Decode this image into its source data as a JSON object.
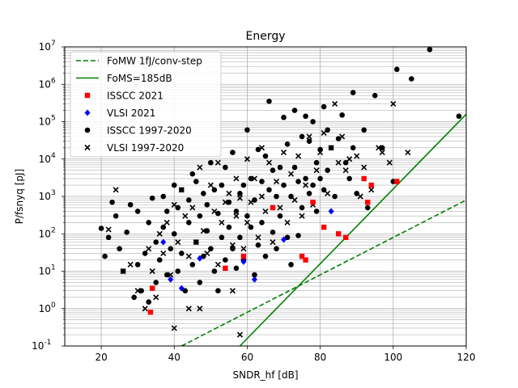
{
  "chart_data": {
    "type": "scatter",
    "title": "Energy",
    "xlabel": "SNDR_hf [dB]",
    "ylabel": "P/fsnyq [pJ]",
    "xlim": [
      10,
      120
    ],
    "ylim_log10": [
      -1,
      7
    ],
    "xscale": "linear",
    "yscale": "log",
    "grid": "on (major and minor)",
    "legend_location": "upper-left",
    "xticks": [
      "20",
      "40",
      "60",
      "80",
      "100",
      "120"
    ],
    "yticks": [
      "10^{-1}",
      "10^{0}",
      "10^{1}",
      "10^{2}",
      "10^{3}",
      "10^{4}",
      "10^{5}",
      "10^{6}",
      "10^{7}"
    ],
    "colors": {
      "fom_lines": "#008000",
      "isscc2021": "#ff0000",
      "vlsi2021": "#0000ff",
      "historic": "#000000"
    },
    "legend": [
      {
        "label": "FoMW 1fJ/conv-step",
        "marker": "dashed-line",
        "color": "#008000"
      },
      {
        "label": "FoMS=185dB",
        "marker": "solid-line",
        "color": "#008000"
      },
      {
        "label": "ISSCC 2021",
        "marker": "square",
        "color": "#ff0000"
      },
      {
        "label": "VLSI 2021",
        "marker": "diamond",
        "color": "#0000ff"
      },
      {
        "label": "ISSCC 1997-2020",
        "marker": "circle",
        "color": "#000000"
      },
      {
        "label": "VLSI 1997-2020",
        "marker": "x",
        "color": "#000000"
      }
    ],
    "reference_lines": [
      {
        "name": "FoMW 1fJ/conv-step",
        "style": "dashed",
        "points": [
          [
            42,
            0.1
          ],
          [
            120,
            800
          ]
        ]
      },
      {
        "name": "FoMS=185dB",
        "style": "solid",
        "points": [
          [
            58,
            0.1
          ],
          [
            120,
            158000
          ]
        ]
      }
    ],
    "series": [
      {
        "name": "ISSCC 2021",
        "marker": "square",
        "points": [
          [
            33.5,
            0.8
          ],
          [
            34,
            3.5
          ],
          [
            54,
            12
          ],
          [
            59,
            25
          ],
          [
            67,
            500
          ],
          [
            75,
            25
          ],
          [
            76,
            20
          ],
          [
            78,
            700
          ],
          [
            81,
            150
          ],
          [
            85,
            100
          ],
          [
            87,
            80
          ],
          [
            92,
            3000
          ],
          [
            93,
            700
          ],
          [
            94,
            2000
          ],
          [
            101,
            2500
          ]
        ]
      },
      {
        "name": "VLSI 2021",
        "marker": "diamond",
        "points": [
          [
            37,
            60
          ],
          [
            39,
            6
          ],
          [
            42,
            3.5
          ],
          [
            47,
            22
          ],
          [
            59,
            18
          ],
          [
            62,
            6
          ],
          [
            70,
            70
          ],
          [
            83,
            400
          ]
        ]
      },
      {
        "name": "ISSCC 1997-2020",
        "marker": "circle",
        "points": [
          [
            20,
            140
          ],
          [
            21,
            25
          ],
          [
            22,
            80
          ],
          [
            23,
            700
          ],
          [
            24,
            300
          ],
          [
            25,
            40
          ],
          [
            26,
            10
          ],
          [
            27,
            110
          ],
          [
            28,
            600
          ],
          [
            29,
            2
          ],
          [
            30,
            15
          ],
          [
            30,
            400
          ],
          [
            31,
            3
          ],
          [
            32,
            30
          ],
          [
            33,
            1.5
          ],
          [
            33,
            200
          ],
          [
            34,
            900
          ],
          [
            35,
            5
          ],
          [
            35,
            60
          ],
          [
            36,
            20
          ],
          [
            37,
            1000
          ],
          [
            37,
            150
          ],
          [
            38,
            8
          ],
          [
            38,
            400
          ],
          [
            39,
            40
          ],
          [
            40,
            2000
          ],
          [
            40,
            100
          ],
          [
            41,
            10
          ],
          [
            41,
            500
          ],
          [
            42,
            30
          ],
          [
            42,
            1500
          ],
          [
            43,
            3
          ],
          [
            44,
            200
          ],
          [
            44,
            800
          ],
          [
            45,
            15
          ],
          [
            45,
            4000
          ],
          [
            46,
            60
          ],
          [
            46,
            2500
          ],
          [
            47,
            5
          ],
          [
            47,
            300
          ],
          [
            48,
            1200
          ],
          [
            48,
            25
          ],
          [
            49,
            120
          ],
          [
            49,
            600
          ],
          [
            50,
            8000
          ],
          [
            50,
            40
          ],
          [
            51,
            1500
          ],
          [
            51,
            10
          ],
          [
            52,
            350
          ],
          [
            52,
            3
          ],
          [
            53,
            80
          ],
          [
            53,
            2000
          ],
          [
            54,
            20
          ],
          [
            54,
            6000
          ],
          [
            55,
            150
          ],
          [
            55,
            700
          ],
          [
            56,
            15000
          ],
          [
            56,
            40
          ],
          [
            57,
            12
          ],
          [
            57,
            400
          ],
          [
            58,
            1200
          ],
          [
            58,
            80
          ],
          [
            59,
            2000
          ],
          [
            59,
            20
          ],
          [
            60,
            60000
          ],
          [
            60,
            300
          ],
          [
            61,
            150
          ],
          [
            61,
            3000
          ],
          [
            62,
            8
          ],
          [
            62,
            800
          ],
          [
            63,
            18000
          ],
          [
            63,
            50
          ],
          [
            64,
            2500
          ],
          [
            64,
            200
          ],
          [
            65,
            25
          ],
          [
            65,
            12000
          ],
          [
            66,
            350000
          ],
          [
            66,
            1500
          ],
          [
            67,
            110
          ],
          [
            67,
            5000
          ],
          [
            68,
            1000
          ],
          [
            68,
            40
          ],
          [
            69,
            6000
          ],
          [
            69,
            300
          ],
          [
            70,
            130000
          ],
          [
            70,
            2000
          ],
          [
            71,
            80
          ],
          [
            71,
            25000
          ],
          [
            72,
            1000
          ],
          [
            72,
            15
          ],
          [
            73,
            200000
          ],
          [
            73,
            6000
          ],
          [
            74,
            2500
          ],
          [
            74,
            90
          ],
          [
            75,
            40000
          ],
          [
            75,
            500
          ],
          [
            76,
            140000
          ],
          [
            76,
            3000
          ],
          [
            77,
            1200
          ],
          [
            77,
            30000
          ],
          [
            78,
            100000
          ],
          [
            78,
            2000
          ],
          [
            79,
            8000
          ],
          [
            79,
            400
          ],
          [
            80,
            3000
          ],
          [
            80,
            18000
          ],
          [
            81,
            250000
          ],
          [
            81,
            1500
          ],
          [
            82,
            60000
          ],
          [
            82,
            5000
          ],
          [
            83,
            20000
          ],
          [
            84,
            1000
          ],
          [
            85,
            35000
          ],
          [
            86,
            150000
          ],
          [
            87,
            8000
          ],
          [
            88,
            3000
          ],
          [
            89,
            600000
          ],
          [
            89,
            20000
          ],
          [
            90,
            1200
          ],
          [
            92,
            60000
          ],
          [
            93,
            500
          ],
          [
            95,
            500000
          ],
          [
            97,
            20000
          ],
          [
            100,
            2500
          ],
          [
            101,
            2500000
          ],
          [
            105,
            1400000
          ],
          [
            110,
            8500000
          ],
          [
            118,
            140000
          ]
        ]
      },
      {
        "name": "VLSI 1997-2020",
        "marker": "x",
        "points": [
          [
            22,
            130
          ],
          [
            24,
            1500
          ],
          [
            26,
            10
          ],
          [
            28,
            15
          ],
          [
            30,
            3
          ],
          [
            32,
            1
          ],
          [
            33,
            40
          ],
          [
            34,
            10
          ],
          [
            35,
            2
          ],
          [
            36,
            100
          ],
          [
            37,
            30
          ],
          [
            38,
            200
          ],
          [
            39,
            8
          ],
          [
            40,
            0.3
          ],
          [
            40,
            600
          ],
          [
            41,
            60
          ],
          [
            42,
            1500
          ],
          [
            43,
            300
          ],
          [
            44,
            1
          ],
          [
            44,
            25
          ],
          [
            45,
            500
          ],
          [
            46,
            60
          ],
          [
            47,
            1
          ],
          [
            47,
            6000
          ],
          [
            48,
            120
          ],
          [
            49,
            30
          ],
          [
            50,
            2000
          ],
          [
            51,
            400
          ],
          [
            52,
            15
          ],
          [
            52,
            8000
          ],
          [
            53,
            200
          ],
          [
            54,
            700
          ],
          [
            55,
            1200
          ],
          [
            56,
            3
          ],
          [
            56,
            50
          ],
          [
            57,
            3000
          ],
          [
            57,
            300
          ],
          [
            58,
            0.2
          ],
          [
            58,
            900
          ],
          [
            59,
            40
          ],
          [
            60,
            10000
          ],
          [
            60,
            200
          ],
          [
            61,
            700
          ],
          [
            62,
            3000
          ],
          [
            63,
            80
          ],
          [
            64,
            20000
          ],
          [
            64,
            1000
          ],
          [
            65,
            400
          ],
          [
            66,
            8000
          ],
          [
            67,
            60
          ],
          [
            68,
            2500
          ],
          [
            69,
            500
          ],
          [
            70,
            15000
          ],
          [
            71,
            200
          ],
          [
            72,
            4000
          ],
          [
            73,
            800
          ],
          [
            74,
            12000
          ],
          [
            75,
            300
          ],
          [
            76,
            2000
          ],
          [
            77,
            40000
          ],
          [
            78,
            600
          ],
          [
            79,
            5000
          ],
          [
            80,
            15000
          ],
          [
            81,
            50000
          ],
          [
            82,
            1200
          ],
          [
            83,
            20000
          ],
          [
            84,
            300000
          ],
          [
            85,
            8000
          ],
          [
            86,
            40000
          ],
          [
            87,
            5000
          ],
          [
            88,
            10000
          ],
          [
            90,
            12000
          ],
          [
            91,
            1000
          ],
          [
            92,
            6000
          ],
          [
            94,
            1500
          ],
          [
            96,
            20000
          ],
          [
            97,
            15000
          ],
          [
            99,
            8000
          ],
          [
            100,
            300000
          ],
          [
            104,
            15000
          ]
        ]
      }
    ]
  }
}
